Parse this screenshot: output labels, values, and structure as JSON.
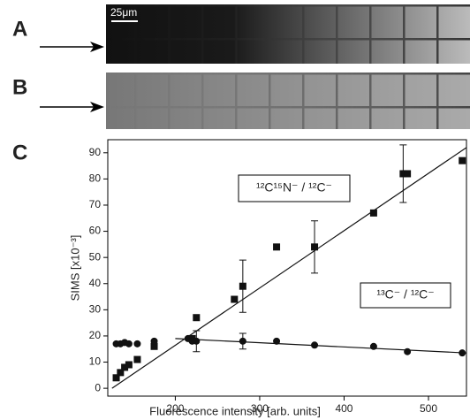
{
  "panels": {
    "a": {
      "label": "A",
      "scale_bar": "25μm"
    },
    "b": {
      "label": "B"
    },
    "c": {
      "label": "C"
    }
  },
  "chart_data": {
    "type": "scatter",
    "xlabel": "Fluorescence intensity [arb. units]",
    "ylabel": "SIMS [x10⁻³]",
    "xlim": [
      120,
      545
    ],
    "xticks": [
      200,
      300,
      400,
      500
    ],
    "ylim": [
      -3,
      95
    ],
    "yticks": [
      0,
      10,
      20,
      30,
      40,
      50,
      60,
      70,
      80,
      90
    ],
    "series": [
      {
        "name": "¹²C¹⁵N⁻ / ¹²C⁻",
        "color": "#111111",
        "marker": "square",
        "x": [
          130,
          135,
          140,
          145,
          155,
          175,
          220,
          225,
          270,
          280,
          320,
          365,
          435,
          470,
          475,
          540
        ],
        "values": [
          4,
          6,
          8,
          9,
          11,
          16,
          19,
          27,
          34,
          39,
          54,
          54,
          67,
          82,
          82,
          87
        ],
        "errors": [
          null,
          null,
          null,
          null,
          null,
          null,
          null,
          null,
          null,
          10,
          null,
          10,
          null,
          11,
          null,
          null
        ],
        "fit": {
          "x": [
            125,
            545
          ],
          "y": [
            0,
            92
          ]
        }
      },
      {
        "name": "¹³C⁻ / ¹²C⁻",
        "color": "#111111",
        "marker": "circle",
        "x": [
          130,
          135,
          140,
          145,
          155,
          175,
          215,
          220,
          225,
          280,
          320,
          365,
          435,
          475,
          540
        ],
        "values": [
          17,
          17,
          17.5,
          17,
          17,
          18,
          19,
          18,
          18,
          18,
          18,
          16.5,
          16,
          14,
          13.5
        ],
        "errors": [
          null,
          null,
          null,
          null,
          null,
          null,
          null,
          null,
          4,
          3,
          null,
          null,
          null,
          null,
          null
        ],
        "fit": {
          "x": [
            200,
            545
          ],
          "y": [
            19,
            13.5
          ]
        }
      }
    ]
  }
}
